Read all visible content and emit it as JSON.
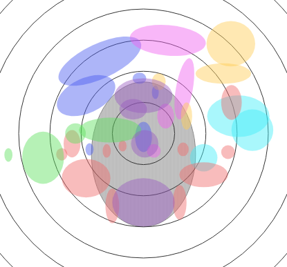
{
  "chart_data": {
    "type": "ellipse",
    "xlim": [
      -4.6,
      4.6
    ],
    "ylim": [
      -4.3,
      4.3
    ],
    "tick_labels": false,
    "grid": true,
    "rings": [
      1,
      2,
      3,
      4,
      5,
      6
    ],
    "head": {
      "x": 0,
      "y": -0.67,
      "rx": 1.67,
      "ry": 2.33,
      "color": "#c8c8c8"
    },
    "series": [
      {
        "color": "#4a5cf0",
        "ellipses": [
          {
            "x": -1.4,
            "y": 2.33,
            "rx": 1.44,
            "ry": 0.56,
            "angle": 25
          },
          {
            "x": -1.84,
            "y": 1.22,
            "rx": 1.0,
            "ry": 0.56,
            "angle": 25
          },
          {
            "x": 0,
            "y": -0.11,
            "rx": 0.27,
            "ry": 0.49,
            "angle": 0
          },
          {
            "x": -0.13,
            "y": 1.78,
            "rx": 0.22,
            "ry": 0.18,
            "angle": 0
          },
          {
            "x": 0.38,
            "y": 1.33,
            "rx": 0.11,
            "ry": 0.22,
            "angle": 0
          },
          {
            "x": -1.73,
            "y": -0.51,
            "rx": 0.13,
            "ry": 0.2,
            "angle": 0
          }
        ]
      },
      {
        "color": "#f060f0",
        "ellipses": [
          {
            "x": 0.78,
            "y": 3.0,
            "rx": 1.22,
            "ry": 0.49,
            "angle": -5
          },
          {
            "x": 1.31,
            "y": 1.44,
            "rx": 0.27,
            "ry": 1.0,
            "angle": -10
          },
          {
            "x": 0.71,
            "y": 0.56,
            "rx": 0.27,
            "ry": 0.4,
            "angle": 0
          },
          {
            "x": 0.33,
            "y": -0.56,
            "rx": 0.22,
            "ry": 0.22,
            "angle": 0
          }
        ]
      },
      {
        "color": "#ffcc55",
        "ellipses": [
          {
            "x": 2.8,
            "y": 2.89,
            "rx": 0.78,
            "ry": 0.73,
            "angle": 0
          },
          {
            "x": 2.56,
            "y": 1.93,
            "rx": 0.89,
            "ry": 0.33,
            "angle": 0
          },
          {
            "x": 0.49,
            "y": 1.67,
            "rx": 0.22,
            "ry": 0.27,
            "angle": 0
          },
          {
            "x": 1.38,
            "y": 0.56,
            "rx": 0.18,
            "ry": 0.44,
            "angle": 0
          }
        ]
      },
      {
        "color": "#40eef8",
        "ellipses": [
          {
            "x": 3.04,
            "y": 0.56,
            "rx": 1.0,
            "ry": 0.67,
            "angle": 0
          },
          {
            "x": 3.49,
            "y": 0.11,
            "rx": 0.67,
            "ry": 0.67,
            "angle": 0
          },
          {
            "x": 1.93,
            "y": -0.78,
            "rx": 0.44,
            "ry": 0.44,
            "angle": 0
          }
        ]
      },
      {
        "color": "#f06a6a",
        "ellipses": [
          {
            "x": -1.84,
            "y": -1.44,
            "rx": 0.78,
            "ry": 0.62,
            "angle": 0
          },
          {
            "x": 1.93,
            "y": -1.33,
            "rx": 0.78,
            "ry": 0.4,
            "angle": 0
          },
          {
            "x": 1.27,
            "y": -0.51,
            "rx": 0.18,
            "ry": 0.22,
            "angle": 0
          },
          {
            "x": 2.71,
            "y": -0.6,
            "rx": 0.22,
            "ry": 0.22,
            "angle": 0
          },
          {
            "x": -1.0,
            "y": -2.33,
            "rx": 0.22,
            "ry": 0.56,
            "angle": 0
          },
          {
            "x": 1.16,
            "y": -2.22,
            "rx": 0.22,
            "ry": 0.56,
            "angle": 0
          },
          {
            "x": -1.18,
            "y": -0.56,
            "rx": 0.13,
            "ry": 0.22,
            "angle": 0
          },
          {
            "x": -0.67,
            "y": -0.4,
            "rx": 0.13,
            "ry": 0.18,
            "angle": 0
          },
          {
            "x": -2.29,
            "y": -0.33,
            "rx": 0.27,
            "ry": 0.44,
            "angle": 0
          },
          {
            "x": 2.82,
            "y": 1.0,
            "rx": 0.33,
            "ry": 0.56,
            "angle": 0
          },
          {
            "x": -2.62,
            "y": -0.67,
            "rx": 0.18,
            "ry": 0.2,
            "angle": 0
          }
        ]
      },
      {
        "color": "#5ee05e",
        "ellipses": [
          {
            "x": -3.22,
            "y": -0.78,
            "rx": 0.67,
            "ry": 0.84,
            "angle": 0
          },
          {
            "x": -1.07,
            "y": 0.11,
            "rx": 1.0,
            "ry": 0.4,
            "angle": 0
          },
          {
            "x": -4.33,
            "y": -0.69,
            "rx": 0.13,
            "ry": 0.22,
            "angle": 0
          },
          {
            "x": -2.18,
            "y": 0.0,
            "rx": 0.33,
            "ry": 0.33,
            "angle": 0
          }
        ]
      },
      {
        "color": "#9a5cc0",
        "ellipses": [
          {
            "x": 0,
            "y": 1.22,
            "rx": 0.93,
            "ry": 0.56,
            "angle": 0
          },
          {
            "x": 0,
            "y": -2.22,
            "rx": 1.0,
            "ry": 0.78,
            "angle": 0
          },
          {
            "x": 0.04,
            "y": -0.33,
            "rx": 0.44,
            "ry": 0.44,
            "angle": 0
          },
          {
            "x": -0.33,
            "y": 0.78,
            "rx": 0.44,
            "ry": 0.33,
            "angle": 0
          }
        ]
      }
    ]
  }
}
